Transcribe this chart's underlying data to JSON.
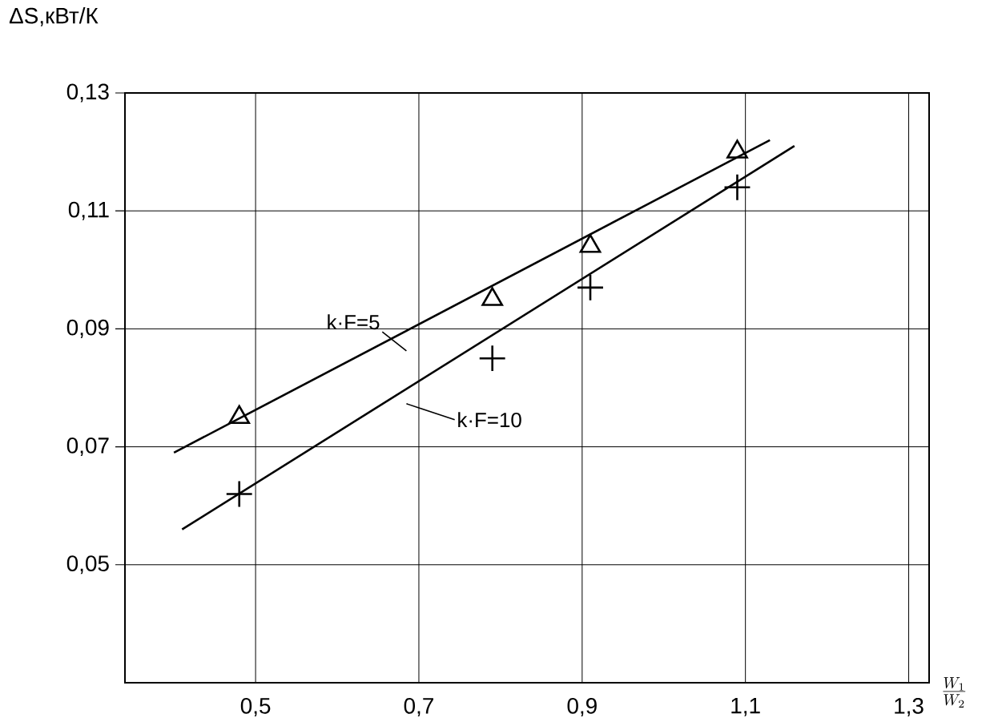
{
  "chart_data": {
    "type": "scatter",
    "ylabel": "ΔS,кВт/К",
    "xlabel": "\\frac{W_1}{W_2}",
    "xlim": [
      0.34,
      1.325
    ],
    "ylim": [
      0.03,
      0.13
    ],
    "xticks": [
      {
        "value": 0.5,
        "label": "0,5"
      },
      {
        "value": 0.7,
        "label": "0,7"
      },
      {
        "value": 0.9,
        "label": "0,9"
      },
      {
        "value": 1.1,
        "label": "1,1"
      },
      {
        "value": 1.3,
        "label": "1,3"
      }
    ],
    "yticks": [
      {
        "value": 0.05,
        "label": "0,05"
      },
      {
        "value": 0.07,
        "label": "0,07"
      },
      {
        "value": 0.09,
        "label": "0,09"
      },
      {
        "value": 0.11,
        "label": "0,11"
      },
      {
        "value": 0.13,
        "label": "0,13"
      }
    ],
    "grid": true,
    "series": [
      {
        "marker": "triangle",
        "color": "#000000",
        "x": [
          0.48,
          0.79,
          0.91,
          1.09
        ],
        "values": [
          0.075,
          0.095,
          0.104,
          0.12
        ]
      },
      {
        "marker": "cross",
        "color": "#000000",
        "x": [
          0.48,
          0.79,
          0.91,
          1.09
        ],
        "values": [
          0.062,
          0.085,
          0.097,
          0.114
        ]
      },
      {
        "type": "line",
        "color": "#000000",
        "x": [
          0.4,
          1.13
        ],
        "values": [
          0.069,
          0.122
        ]
      },
      {
        "type": "line",
        "color": "#000000",
        "x": [
          0.41,
          1.16
        ],
        "values": [
          0.056,
          0.121
        ]
      }
    ],
    "annotations": [
      "k·F=5",
      "k·F=10"
    ]
  }
}
